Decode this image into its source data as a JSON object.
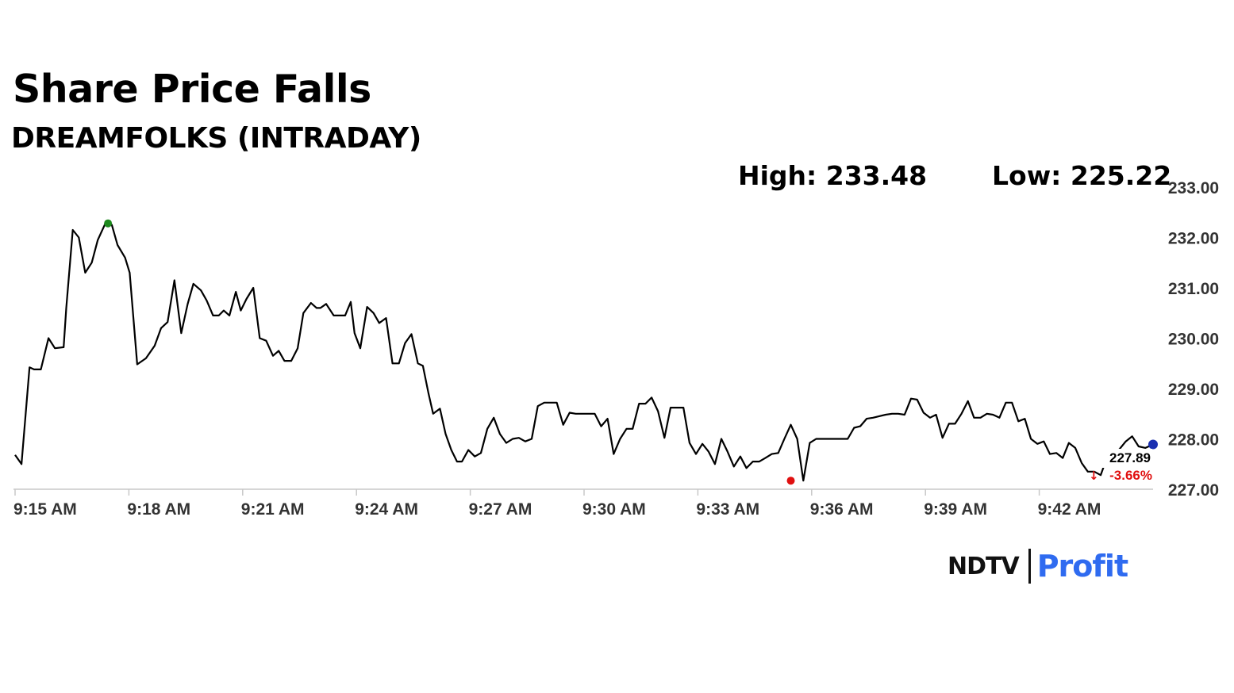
{
  "header": {
    "title": "Share Price Falls",
    "subtitle": "DREAMFOLKS (INTRADAY)",
    "high": "High: 233.48",
    "low": "Low: 225.22"
  },
  "brand": {
    "name": "NDTV",
    "product": "Profit"
  },
  "last_price": {
    "value": "227.89",
    "change": "-3.66%",
    "arrow": "down-arrow-icon"
  },
  "colors": {
    "line": "#000000",
    "high_marker": "#1e8a1e",
    "low_marker": "#e01010",
    "last_marker": "#1a2fb0",
    "change": "#e01010",
    "axis": "#c8c8c8"
  },
  "chart_data": {
    "type": "line",
    "title": "Share Price Falls",
    "subtitle": "DREAMFOLKS (INTRADAY)",
    "x_ticks": [
      "9:15 AM",
      "9:18 AM",
      "9:21 AM",
      "9:24 AM",
      "9:27 AM",
      "9:30 AM",
      "9:33 AM",
      "9:36 AM",
      "9:39 AM",
      "9:42 AM"
    ],
    "y_ticks": [
      "233.00",
      "232.00",
      "231.00",
      "230.00",
      "229.00",
      "228.00",
      "227.00"
    ],
    "ylim": [
      227.0,
      233.0
    ],
    "x_unit": "minutes after 9:15 AM",
    "xlim": [
      0,
      30
    ],
    "grid": false,
    "series": [
      {
        "name": "DREAMFOLKS",
        "x": [
          0,
          0.17,
          0.38,
          0.5,
          0.68,
          0.88,
          1.05,
          1.28,
          1.35,
          1.52,
          1.68,
          1.85,
          2.02,
          2.18,
          2.38,
          2.55,
          2.7,
          2.9,
          3.02,
          3.22,
          3.45,
          3.68,
          3.85,
          4.02,
          4.2,
          4.38,
          4.55,
          4.7,
          4.9,
          5.05,
          5.22,
          5.37,
          5.5,
          5.65,
          5.82,
          5.95,
          6.1,
          6.28,
          6.45,
          6.62,
          6.8,
          6.95,
          7.1,
          7.28,
          7.45,
          7.6,
          7.8,
          7.95,
          8.05,
          8.2,
          8.4,
          8.55,
          8.7,
          8.85,
          8.95,
          9.1,
          9.28,
          9.45,
          9.6,
          9.78,
          9.95,
          10.12,
          10.28,
          10.45,
          10.62,
          10.75,
          10.9,
          11.02,
          11.2,
          11.35,
          11.5,
          11.65,
          11.78,
          11.95,
          12.12,
          12.28,
          12.45,
          12.62,
          12.78,
          12.95,
          13.12,
          13.28,
          13.45,
          13.62,
          13.78,
          13.95,
          14.12,
          14.28,
          14.45,
          14.62,
          14.78,
          14.95,
          15.1,
          15.28,
          15.45,
          15.62,
          15.78,
          15.95,
          16.12,
          16.28,
          16.45,
          16.62,
          16.78,
          16.95,
          17.12,
          17.28,
          17.45,
          17.62,
          17.78,
          17.95,
          18.12,
          18.28,
          18.45,
          18.62,
          18.78,
          18.95,
          19.12,
          19.28,
          19.45,
          19.62,
          19.78,
          19.95,
          20.12,
          20.28,
          20.45,
          20.62,
          20.78,
          20.95,
          21.12,
          21.28,
          21.45,
          21.62,
          21.78,
          21.95,
          22.12,
          22.28,
          22.45,
          22.62,
          22.78,
          22.95,
          23.12,
          23.28,
          23.45,
          23.62,
          23.78,
          23.95,
          24.12,
          24.28,
          24.45,
          24.62,
          24.78,
          24.95,
          25.12,
          25.28,
          25.45,
          25.62,
          25.78,
          25.95,
          26.12,
          26.28,
          26.45,
          26.62,
          26.78,
          26.95,
          27.12,
          27.28,
          27.45,
          27.62,
          27.78,
          27.95,
          28.12,
          28.28,
          28.45,
          28.62,
          28.78,
          28.95,
          29.12,
          29.28,
          29.45,
          29.62,
          29.8,
          30.0
        ],
        "values": [
          227.68,
          227.5,
          229.42,
          229.38,
          229.38,
          230.0,
          229.8,
          229.82,
          230.6,
          232.15,
          232.0,
          231.3,
          231.5,
          231.95,
          232.28,
          232.25,
          231.85,
          231.6,
          231.3,
          229.48,
          229.6,
          229.85,
          230.2,
          230.32,
          231.15,
          230.1,
          230.68,
          231.08,
          230.95,
          230.75,
          230.45,
          230.45,
          230.55,
          230.45,
          230.92,
          230.55,
          230.78,
          231.0,
          230.0,
          229.95,
          229.65,
          229.75,
          229.55,
          229.55,
          229.8,
          230.5,
          230.7,
          230.6,
          230.6,
          230.68,
          230.45,
          230.45,
          230.45,
          230.72,
          230.1,
          229.8,
          230.62,
          230.5,
          230.3,
          230.4,
          229.5,
          229.5,
          229.9,
          230.08,
          229.5,
          229.45,
          228.9,
          228.5,
          228.6,
          228.1,
          227.78,
          227.55,
          227.55,
          227.78,
          227.65,
          227.72,
          228.2,
          228.42,
          228.1,
          227.92,
          228.0,
          228.02,
          227.95,
          228.0,
          228.65,
          228.72,
          228.72,
          228.72,
          228.28,
          228.52,
          228.5,
          228.5,
          228.5,
          228.5,
          228.25,
          228.4,
          227.7,
          228.0,
          228.2,
          228.2,
          228.7,
          228.7,
          228.82,
          228.55,
          228.02,
          228.62,
          228.62,
          228.62,
          227.92,
          227.7,
          227.9,
          227.75,
          227.5,
          228.0,
          227.75,
          227.45,
          227.65,
          227.42,
          227.55,
          227.55,
          227.62,
          227.7,
          227.72,
          228.0,
          228.28,
          228.0,
          227.17,
          227.92,
          228.0,
          228.0,
          228.0,
          228.0,
          228.0,
          228.0,
          228.22,
          228.25,
          228.4,
          228.42,
          228.45,
          228.48,
          228.5,
          228.5,
          228.48,
          228.8,
          228.78,
          228.52,
          228.42,
          228.48,
          228.02,
          228.3,
          228.3,
          228.5,
          228.75,
          228.42,
          228.42,
          228.5,
          228.48,
          228.42,
          228.72,
          228.72,
          228.35,
          228.4,
          228.0,
          227.9,
          227.95,
          227.7,
          227.72,
          227.62,
          227.92,
          227.82,
          227.52,
          227.35,
          227.35,
          227.28,
          227.62,
          227.68,
          227.8,
          227.95,
          228.05,
          227.85,
          227.82,
          227.89
        ]
      }
    ],
    "annotations": [
      {
        "label": "High",
        "x": 2.45,
        "value": 232.28
      },
      {
        "label": "Low",
        "x": 20.45,
        "value": 227.17
      },
      {
        "label": "Last",
        "x": 30.0,
        "value": 227.89,
        "text": "227.89",
        "change": "-3.66%"
      }
    ]
  }
}
